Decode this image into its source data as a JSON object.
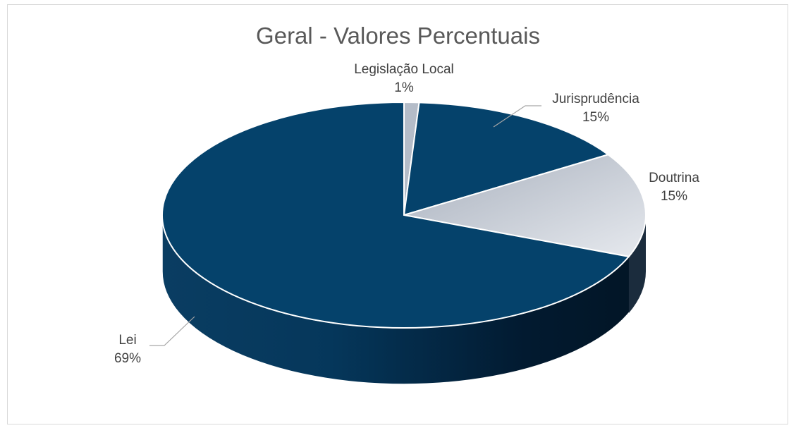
{
  "chart_data": {
    "type": "pie",
    "title": "Geral - Valores Percentuais",
    "legend": "none",
    "slices": [
      {
        "category": "Legislação Local",
        "value": 1,
        "label": "1%",
        "color": "#b4bcc8"
      },
      {
        "category": "Jurisprudência",
        "value": 15,
        "label": "15%",
        "color": "#05426b"
      },
      {
        "category": "Doutrina",
        "value": 15,
        "label": "15%",
        "color": "#cfd4dc"
      },
      {
        "category": "Lei",
        "value": 69,
        "label": "69%",
        "color": "#05426b"
      }
    ]
  }
}
